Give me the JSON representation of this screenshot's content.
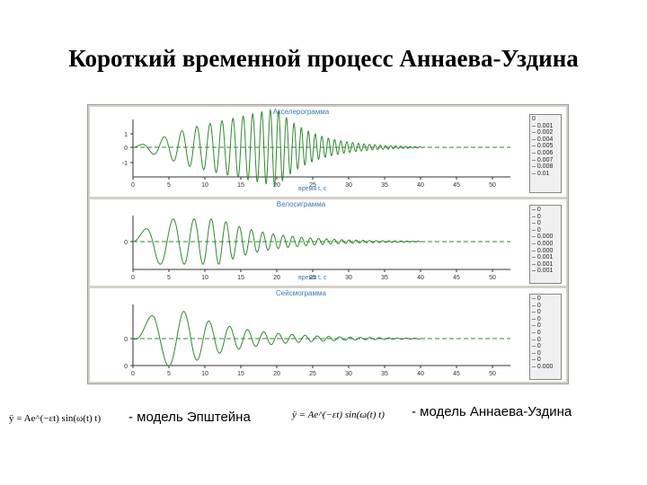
{
  "slide": {
    "title": "Короткий временной процесс Аннаева-Уздина"
  },
  "panels": [
    {
      "title": "Акселерограмма",
      "y_ticks": [
        "1",
        "0",
        "-1"
      ],
      "x_ticks": [
        "0",
        "5",
        "10",
        "15",
        "20",
        "25",
        "30",
        "35",
        "40",
        "45",
        "50"
      ],
      "xlabel": "время    t, с",
      "legend": [
        "0",
        "– 0.001",
        "– 0.002",
        "– 0.004",
        "– 0.005",
        "– 0.006",
        "– 0.007",
        "– 0.008",
        "– 0.01"
      ]
    },
    {
      "title": "Велосиграмма",
      "y_ticks": [
        "0"
      ],
      "x_ticks": [
        "0",
        "5",
        "10",
        "15",
        "20",
        "25",
        "30",
        "35",
        "40",
        "45",
        "50"
      ],
      "xlabel": "время    t, с",
      "legend": [
        "– 0",
        "– 0",
        "– 0",
        "– 0",
        "– 0.000",
        "– 0.000",
        "– 0.000",
        "– 0.001",
        "– 0.001",
        "– 0.001"
      ]
    },
    {
      "title": "Сейсмограмма",
      "y_ticks": [
        "0",
        "0"
      ],
      "x_ticks": [
        "0",
        "5",
        "10",
        "15",
        "20",
        "25",
        "30",
        "35",
        "40",
        "45",
        "50"
      ],
      "xlabel": "",
      "legend": [
        "– 0",
        "– 0",
        "– 0",
        "– 0",
        "– 0",
        "– 0",
        "– 0",
        "– 0",
        "– 0",
        "– 0",
        "– 0.000"
      ]
    }
  ],
  "colors": {
    "curve": "#2e8b2e",
    "axis": "#333333",
    "dashed": "#2e8b2e",
    "title": "#3a7ab0"
  },
  "chart_data": [
    {
      "type": "line",
      "title": "Акселерограмма",
      "xlabel": "время t, с",
      "xlim": [
        0,
        50
      ],
      "ylim": [
        -1.5,
        1.5
      ],
      "series": [
        {
          "kind": "accel"
        }
      ]
    },
    {
      "type": "line",
      "title": "Велосиграмма",
      "xlabel": "время t, с",
      "xlim": [
        0,
        50
      ],
      "series": [
        {
          "kind": "vel"
        }
      ]
    },
    {
      "type": "line",
      "title": "Сейсмограмма",
      "xlim": [
        0,
        50
      ],
      "series": [
        {
          "kind": "disp"
        }
      ]
    }
  ],
  "footer": {
    "formula1": "ÿ = Ae^(−εt) sin(ω(t) t)",
    "caption1": "- модель Эпштейна",
    "formula2": "ÿ = Ae^(−εt) sin(ω(t) t)",
    "caption2": "- модель Аннаева-Уздина"
  }
}
